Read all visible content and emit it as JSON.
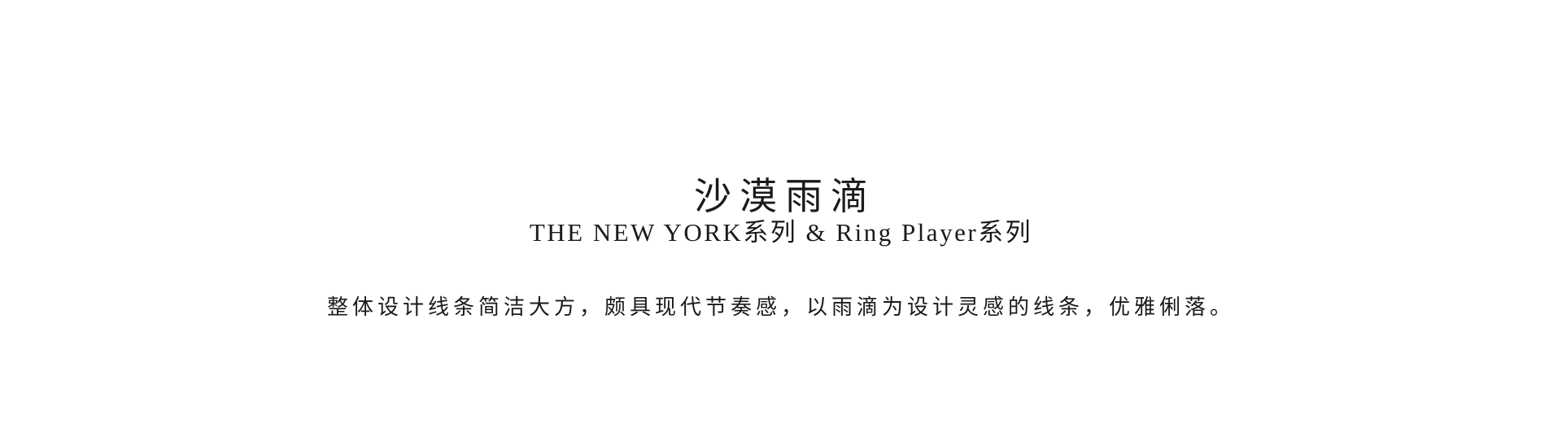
{
  "content": {
    "title": "沙漠雨滴",
    "subtitle": "THE NEW YORK系列 & Ring Player系列",
    "description": "整体设计线条简洁大方，颇具现代节奏感，以雨滴为设计灵感的线条，优雅俐落。"
  }
}
